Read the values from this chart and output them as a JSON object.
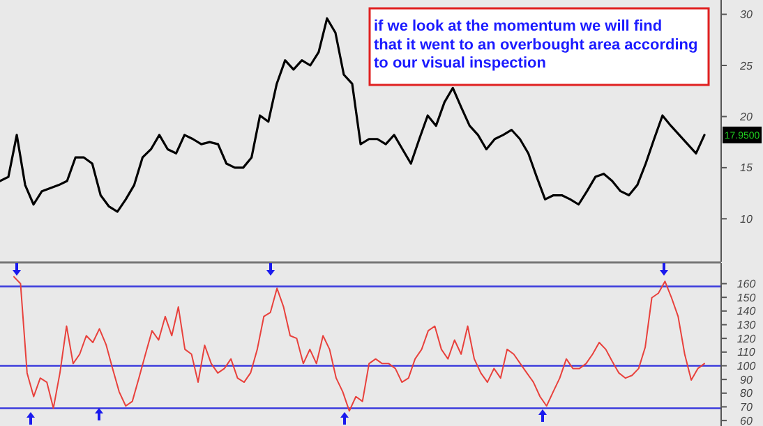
{
  "chart_data": [
    {
      "type": "line",
      "categories": [
        null,
        null,
        null,
        null,
        null,
        null,
        null,
        null,
        null,
        null,
        null,
        null,
        null,
        null,
        null,
        null,
        null,
        null,
        null,
        null,
        null,
        null,
        null,
        null,
        null,
        null,
        null,
        null,
        null,
        null,
        null,
        null,
        null,
        null,
        null,
        null,
        null,
        null,
        null,
        null,
        null,
        null,
        null,
        null,
        null,
        null,
        null,
        null,
        null,
        null,
        null,
        null,
        null,
        null,
        null,
        null,
        null,
        null,
        null,
        null,
        null,
        null,
        null,
        null,
        null,
        null,
        null,
        null,
        null,
        null,
        null,
        null,
        null,
        null,
        null,
        null,
        null,
        null,
        null,
        null,
        null,
        null,
        null,
        null,
        null
      ],
      "series": [
        {
          "color": "#000000",
          "values": [
            13.7,
            14.1,
            18.2,
            13.3,
            11.4,
            12.7,
            13.0,
            13.3,
            13.7,
            16.0,
            16.0,
            15.4,
            12.3,
            11.2,
            10.7,
            11.9,
            13.3,
            16.0,
            16.8,
            18.2,
            16.8,
            16.4,
            18.2,
            17.8,
            17.3,
            17.5,
            17.3,
            15.4,
            15.0,
            15.0,
            16.0,
            20.1,
            19.5,
            23.2,
            25.5,
            24.6,
            25.5,
            25.0,
            26.3,
            29.6,
            28.2,
            24.1,
            23.2,
            17.3,
            17.8,
            17.8,
            17.3,
            18.2,
            16.8,
            15.4,
            17.8,
            20.1,
            19.1,
            21.4,
            22.8,
            20.9,
            19.1,
            18.2,
            16.8,
            17.8,
            18.2,
            18.7,
            17.8,
            16.4,
            14.1,
            11.9,
            12.3,
            12.3,
            11.9,
            11.4,
            12.7,
            14.1,
            14.4,
            13.7,
            12.7,
            12.3,
            13.3,
            15.4,
            17.8,
            20.1,
            19.1,
            18.2,
            17.3,
            16.4,
            18.2
          ]
        }
      ],
      "ylim": [
        5.8,
        31.4
      ],
      "yticks": [
        10,
        15,
        20,
        25,
        30
      ],
      "tick_labels": "y",
      "annotations": [
        "if we look at the momentum we will find\nthat it went to an overbought area according\nto our visual inspection",
        "17.9500"
      ]
    },
    {
      "type": "line",
      "categories": [
        null,
        null,
        null,
        null,
        null,
        null,
        null,
        null,
        null,
        null,
        null,
        null,
        null,
        null,
        null,
        null,
        null,
        null,
        null,
        null,
        null,
        null,
        null,
        null,
        null,
        null,
        null,
        null,
        null,
        null,
        null,
        null,
        null,
        null,
        null,
        null,
        null,
        null,
        null,
        null,
        null,
        null,
        null,
        null,
        null,
        null,
        null,
        null,
        null,
        null,
        null,
        null,
        null,
        null,
        null,
        null,
        null,
        null,
        null,
        null,
        null,
        null,
        null,
        null,
        null,
        null,
        null,
        null,
        null,
        null,
        null,
        null,
        null,
        null,
        null,
        null,
        null,
        null,
        null,
        null,
        null,
        null,
        null,
        null,
        null,
        null,
        null,
        null,
        null,
        null,
        null,
        null,
        null,
        null,
        null,
        null,
        null,
        null,
        null,
        null,
        null,
        null,
        null,
        null,
        null,
        null
      ],
      "series": [
        {
          "color": "#e8413c",
          "values": [
            165,
            160,
            94.7,
            77.5,
            91,
            88,
            69,
            95,
            129,
            101.6,
            108.5,
            122,
            117,
            127,
            115.6,
            98,
            81,
            70.6,
            74,
            91,
            108.5,
            125.6,
            118.8,
            136,
            122,
            143,
            112,
            108.5,
            88,
            115,
            101.6,
            94.7,
            98,
            105,
            91,
            88,
            95,
            112,
            136,
            139,
            156.6,
            143,
            122,
            120,
            101.6,
            112,
            101.6,
            122,
            112,
            91,
            81,
            67,
            77.5,
            74,
            101.6,
            105,
            101.6,
            101.6,
            98,
            88,
            91,
            105,
            112,
            125.6,
            129,
            112,
            105,
            118.8,
            108.5,
            129,
            105,
            94.7,
            88,
            98,
            91,
            112,
            108.5,
            101.6,
            94.7,
            88,
            77.5,
            70.6,
            81,
            91,
            105,
            98,
            98,
            101.6,
            108.5,
            117,
            112,
            103,
            94.7,
            91,
            93,
            98,
            113.6,
            149.7,
            153,
            161.7,
            149.7,
            136,
            108.5,
            89.6,
            98,
            101.6
          ]
        }
      ],
      "ylim": [
        56,
        175
      ],
      "yticks": [
        60,
        70,
        80,
        90,
        100,
        110,
        120,
        130,
        140,
        150,
        160
      ],
      "tick_labels": "y",
      "ref_lines": [
        {
          "axis": "y",
          "value": 158,
          "color": "#3b3bdc"
        },
        {
          "axis": "y",
          "value": 100,
          "color": "#3b3bdc"
        },
        {
          "axis": "y",
          "value": 69,
          "color": "#3b3bdc"
        }
      ]
    }
  ]
}
